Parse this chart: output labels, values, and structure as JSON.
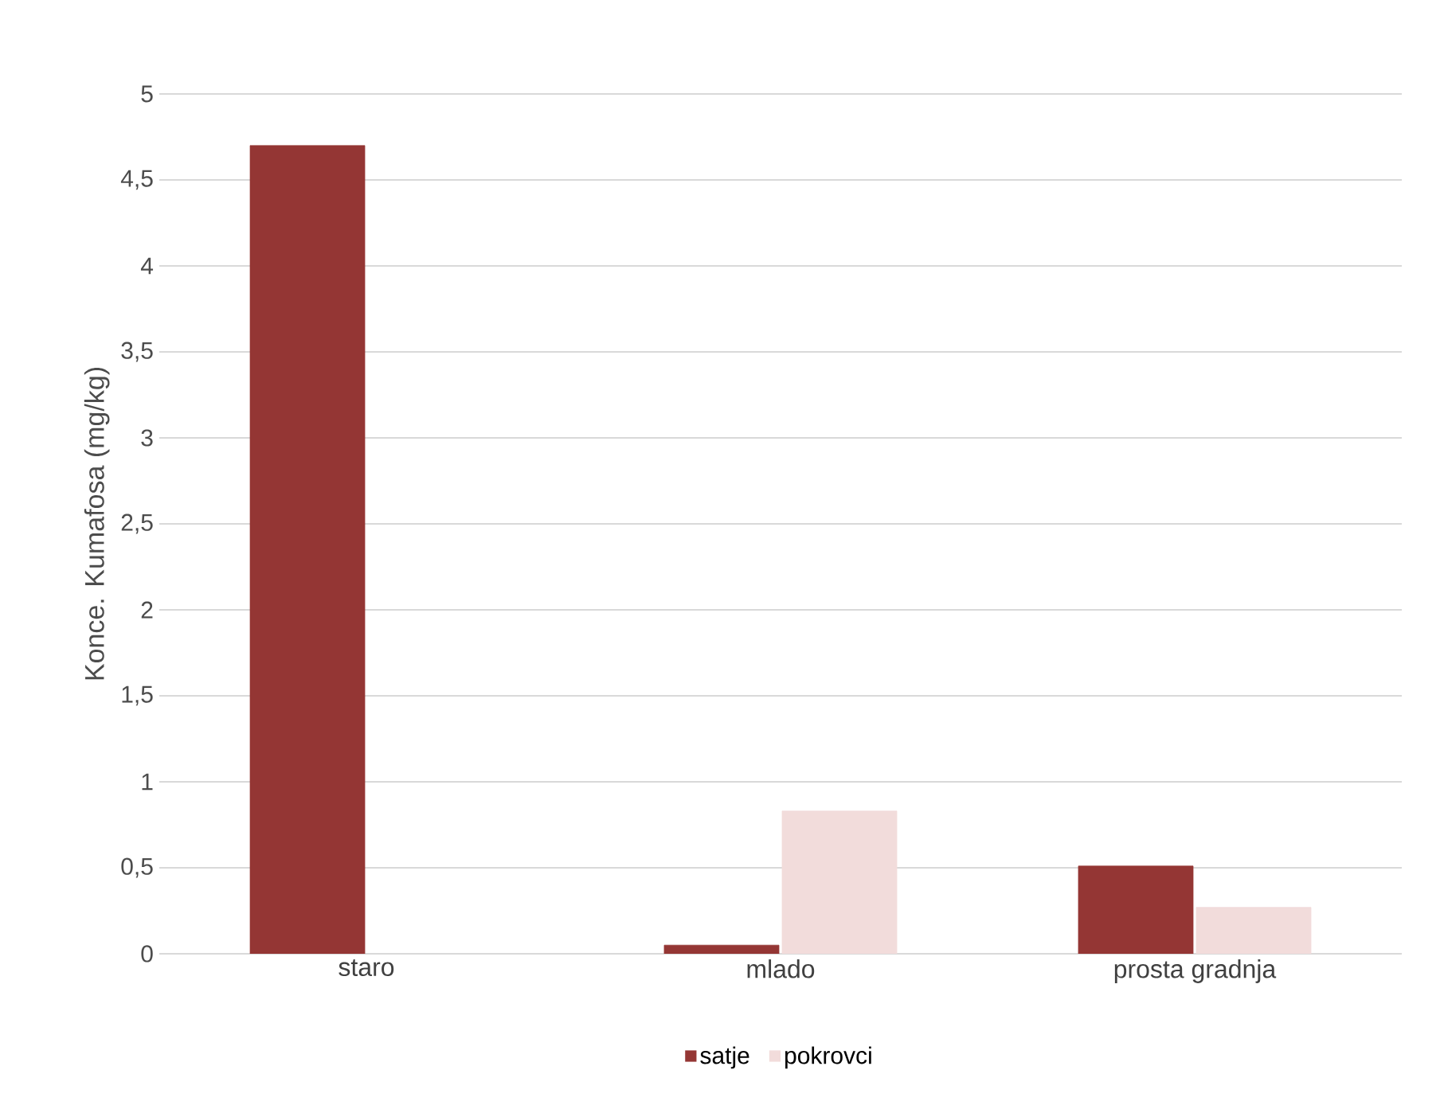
{
  "chart_data": {
    "type": "bar",
    "ylabel": "Konce. Kumafosa (mg/kg)",
    "categories": [
      "staro",
      "mlado",
      "prosta gradnja"
    ],
    "series": [
      {
        "name": "satje",
        "color": "#943634",
        "values": [
          4.7,
          0.05,
          0.51
        ]
      },
      {
        "name": "pokrovci",
        "color": "#f2dcdb",
        "values": [
          null,
          0.83,
          0.27
        ]
      }
    ],
    "ylim": [
      0,
      5
    ],
    "yticks": [
      0,
      {
        "value": 0.5,
        "label": "0,5"
      },
      1,
      {
        "value": 1.5,
        "label": "1,5"
      },
      2,
      {
        "value": 2.5,
        "label": "2,5"
      },
      3,
      {
        "value": 3.5,
        "label": "3,5"
      },
      4,
      {
        "value": 4.5,
        "label": "4,5"
      },
      5
    ],
    "grid": "y",
    "legend": "bottom"
  }
}
